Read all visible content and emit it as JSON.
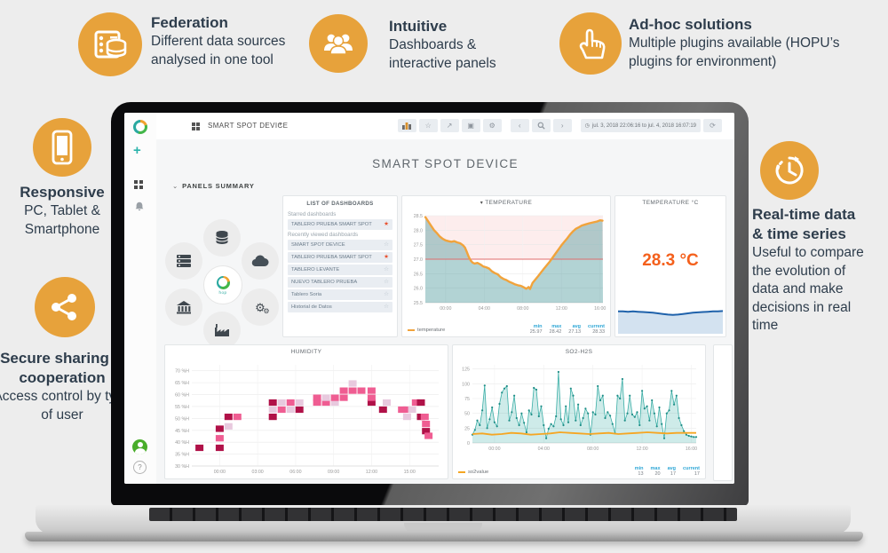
{
  "page": {
    "background": "#ededed"
  },
  "brand": {
    "gold": "#e7a23b",
    "text_dark": "#2e3d4c",
    "teal": "#2aa9a0",
    "orange_stat": "#f4601c"
  },
  "callouts": {
    "federation": {
      "title": "Federation",
      "desc": "Different data sources analysed in one tool"
    },
    "intuitive": {
      "title": "Intuitive",
      "desc": "Dashboards & interactive panels"
    },
    "adhoc": {
      "title": "Ad-hoc solutions",
      "desc": "Multiple plugins available (HOPU’s plugins for environment)"
    },
    "responsive": {
      "title": "Responsive",
      "desc": "PC, Tablet & Smartphone"
    },
    "secure": {
      "title": "Secure sharing & cooperation",
      "desc": "Access control by type of user"
    },
    "realtime": {
      "title": "Real-time data & time series",
      "desc": "Useful to compare the evolution of data and make decisions in real time"
    }
  },
  "dashboard": {
    "nav": {
      "title": "SMART SPOT DEVICE",
      "caret": "▾",
      "toolbar": [
        {
          "name": "add-panel"
        },
        {
          "name": "star",
          "glyph": "☆"
        },
        {
          "name": "share",
          "glyph": "↗"
        },
        {
          "name": "save",
          "glyph": "▣"
        },
        {
          "name": "settings",
          "glyph": "⚙"
        }
      ],
      "nav_group": [
        {
          "name": "back",
          "glyph": "‹"
        },
        {
          "name": "search"
        },
        {
          "name": "forward",
          "glyph": "›"
        }
      ],
      "clock_glyph": "◷",
      "time_range": "jul. 3, 2018 22:06:16 to jul. 4, 2018 16:07:19",
      "refresh_glyph": "⟳"
    },
    "page_title": "SMART SPOT DEVICE",
    "panels_summary": {
      "label": "PANELS SUMMARY",
      "caret": "⌄",
      "center_label": "hop",
      "petals": [
        "database",
        "servers",
        "cloud",
        "bank",
        "gears",
        "factory"
      ]
    },
    "dashlist": {
      "title": "LIST OF DASHBOARDS",
      "sections": [
        {
          "label": "Starred dashboards",
          "rows": [
            {
              "label": "TABLERO PRUEBA SMART SPOT",
              "starred": true
            }
          ]
        },
        {
          "label": "Recently viewed dashboards",
          "rows": [
            {
              "label": "SMART SPOT DEVICE",
              "starred": false
            },
            {
              "label": "TABLERO PRUEBA SMART SPOT",
              "starred": true
            },
            {
              "label": "TABLERO LEVANTE",
              "starred": false
            },
            {
              "label": "NUEVO TABLERO PRUEBA",
              "starred": false
            },
            {
              "label": "Tablero Soria",
              "starred": false
            },
            {
              "label": "Historial de Datos",
              "starred": false
            }
          ]
        }
      ]
    }
  },
  "chart_data": [
    {
      "id": "temperature",
      "type": "line",
      "title": "TEMPERATURE",
      "legend": "temperature",
      "series_color": "#f1a33c",
      "fill_color": "rgba(72,150,152,0.42)",
      "threshold": {
        "value": 27.0,
        "color": "#e06c6c",
        "fill_above": "rgba(242,140,140,0.16)"
      },
      "ylim": [
        25.5,
        28.5
      ],
      "yticks": [
        25.5,
        26.0,
        26.5,
        27.0,
        27.5,
        28.0,
        28.5
      ],
      "xlim": [
        -2.1,
        16.3
      ],
      "xticks": [
        {
          "v": 0,
          "label": "00:00"
        },
        {
          "v": 4,
          "label": "04:00"
        },
        {
          "v": 8,
          "label": "08:00"
        },
        {
          "v": 12,
          "label": "12:00"
        },
        {
          "v": 16,
          "label": "16:00"
        }
      ],
      "stat_labels": [
        "min",
        "max",
        "avg",
        "current"
      ],
      "stats": {
        "min": "25.97",
        "max": "28.42",
        "avg": "27.13",
        "current": "28.33"
      },
      "points": [
        [
          -2.1,
          28.45
        ],
        [
          -1.8,
          28.3
        ],
        [
          -1.5,
          28.15
        ],
        [
          -1.2,
          28.0
        ],
        [
          -0.9,
          27.9
        ],
        [
          -0.6,
          27.78
        ],
        [
          -0.3,
          27.7
        ],
        [
          0,
          27.65
        ],
        [
          0.3,
          27.62
        ],
        [
          0.6,
          27.6
        ],
        [
          0.9,
          27.62
        ],
        [
          1.2,
          27.58
        ],
        [
          1.5,
          27.55
        ],
        [
          1.8,
          27.48
        ],
        [
          2.0,
          27.4
        ],
        [
          2.2,
          27.25
        ],
        [
          2.4,
          27.08
        ],
        [
          2.6,
          26.95
        ],
        [
          2.8,
          26.88
        ],
        [
          3.0,
          26.85
        ],
        [
          3.3,
          26.87
        ],
        [
          3.6,
          26.82
        ],
        [
          3.9,
          26.75
        ],
        [
          4.2,
          26.72
        ],
        [
          4.5,
          26.68
        ],
        [
          4.8,
          26.58
        ],
        [
          5.1,
          26.52
        ],
        [
          5.4,
          26.48
        ],
        [
          5.7,
          26.38
        ],
        [
          6.0,
          26.32
        ],
        [
          6.3,
          26.28
        ],
        [
          6.6,
          26.22
        ],
        [
          6.9,
          26.18
        ],
        [
          7.2,
          26.13
        ],
        [
          7.5,
          26.1
        ],
        [
          7.8,
          26.08
        ],
        [
          8.1,
          26.03
        ],
        [
          8.35,
          25.98
        ],
        [
          8.6,
          26.04
        ],
        [
          8.75,
          25.97
        ],
        [
          9.0,
          26.18
        ],
        [
          9.3,
          26.3
        ],
        [
          9.6,
          26.42
        ],
        [
          9.9,
          26.55
        ],
        [
          10.2,
          26.68
        ],
        [
          10.5,
          26.8
        ],
        [
          10.8,
          26.92
        ],
        [
          11.1,
          27.06
        ],
        [
          11.4,
          27.2
        ],
        [
          11.7,
          27.34
        ],
        [
          12.0,
          27.48
        ],
        [
          12.3,
          27.6
        ],
        [
          12.6,
          27.72
        ],
        [
          12.9,
          27.85
        ],
        [
          13.2,
          27.96
        ],
        [
          13.5,
          28.05
        ],
        [
          13.8,
          28.1
        ],
        [
          14.1,
          28.16
        ],
        [
          14.5,
          28.2
        ],
        [
          14.9,
          28.24
        ],
        [
          15.3,
          28.27
        ],
        [
          15.7,
          28.3
        ],
        [
          16.0,
          28.34
        ],
        [
          16.25,
          28.33
        ]
      ]
    },
    {
      "id": "temp_current",
      "type": "stat",
      "title": "TEMPERATURE °C",
      "value": "28.3 °C",
      "value_color": "#f4601c",
      "spark_color": "#1f62ab",
      "spark_fill": "#d3e2f0",
      "spark": [
        0.3,
        0.3,
        0.31,
        0.3,
        0.31,
        0.32,
        0.33,
        0.34,
        0.36,
        0.38,
        0.4,
        0.41,
        0.4,
        0.38,
        0.36,
        0.34,
        0.33,
        0.32,
        0.31,
        0.3,
        0.3,
        0.29
      ]
    },
    {
      "id": "humidity",
      "type": "heatmap",
      "title": "HUMIDITY",
      "ylim": [
        30,
        72.5
      ],
      "yticks": [
        {
          "v": 30,
          "label": "30 %H"
        },
        {
          "v": 35,
          "label": "35 %H"
        },
        {
          "v": 40,
          "label": "40 %H"
        },
        {
          "v": 45,
          "label": "45 %H"
        },
        {
          "v": 50,
          "label": "50 %H"
        },
        {
          "v": 55,
          "label": "55 %H"
        },
        {
          "v": 60,
          "label": "60 %H"
        },
        {
          "v": 65,
          "label": "65 %H"
        },
        {
          "v": 70,
          "label": "70 %H"
        }
      ],
      "xlim": [
        -2.2,
        17.3
      ],
      "xticks": [
        {
          "v": 0,
          "label": "00:00"
        },
        {
          "v": 3,
          "label": "03:00"
        },
        {
          "v": 6,
          "label": "06:00"
        },
        {
          "v": 9,
          "label": "09:00"
        },
        {
          "v": 12,
          "label": "12:00"
        },
        {
          "v": 15,
          "label": "15:00"
        }
      ],
      "cell_colors": {
        "0": "#e8c9de",
        "1": "#ef5d92",
        "2": "#b01148"
      },
      "cells": [
        [
          -1.6,
          36,
          2
        ],
        [
          0,
          36,
          2
        ],
        [
          0,
          40,
          1
        ],
        [
          0,
          44,
          2
        ],
        [
          0.7,
          45,
          0
        ],
        [
          0.7,
          49,
          2
        ],
        [
          1.4,
          49,
          1
        ],
        [
          4.2,
          49,
          2
        ],
        [
          4.2,
          52,
          0
        ],
        [
          4.2,
          55,
          2
        ],
        [
          4.9,
          52,
          1
        ],
        [
          4.9,
          55,
          0
        ],
        [
          5.6,
          52,
          0
        ],
        [
          5.6,
          55,
          1
        ],
        [
          6.3,
          52,
          2
        ],
        [
          6.3,
          55,
          0
        ],
        [
          7.7,
          55,
          1
        ],
        [
          7.7,
          57,
          1
        ],
        [
          8.4,
          55,
          1
        ],
        [
          8.4,
          57,
          0
        ],
        [
          9.1,
          55,
          0
        ],
        [
          9.1,
          57,
          1
        ],
        [
          9.8,
          57,
          1
        ],
        [
          9.8,
          60,
          1
        ],
        [
          10.5,
          60,
          1
        ],
        [
          10.5,
          63,
          0
        ],
        [
          11.2,
          60,
          1
        ],
        [
          12,
          55,
          2
        ],
        [
          12,
          57,
          1
        ],
        [
          12,
          60,
          1
        ],
        [
          12.9,
          52,
          2
        ],
        [
          13.2,
          55,
          0
        ],
        [
          14.4,
          52,
          1
        ],
        [
          14.8,
          52,
          1
        ],
        [
          14.8,
          49,
          0
        ],
        [
          15.2,
          52,
          0
        ],
        [
          15.5,
          55,
          1
        ],
        [
          15.9,
          55,
          2
        ],
        [
          15.9,
          49,
          2
        ],
        [
          16.2,
          49,
          1
        ],
        [
          16.3,
          46,
          1
        ],
        [
          16.3,
          43,
          2
        ],
        [
          16.5,
          41,
          1
        ]
      ]
    },
    {
      "id": "so2",
      "type": "spike",
      "title": "SO2-H2S",
      "legend": "so2value",
      "spike_color": "#3aaea6",
      "marker_color": "#1f8e87",
      "fill_color": "rgba(58,174,166,0.25)",
      "baseline_color": "#f5a623",
      "ylim": [
        0,
        132
      ],
      "yticks": [
        0,
        25,
        50,
        75,
        100,
        125
      ],
      "xlim": [
        -1.8,
        16.4
      ],
      "xticks": [
        {
          "v": 0,
          "label": "00:00"
        },
        {
          "v": 4,
          "label": "04:00"
        },
        {
          "v": 8,
          "label": "08:00"
        },
        {
          "v": 12,
          "label": "12:00"
        },
        {
          "v": 16,
          "label": "16:00"
        }
      ],
      "stat_labels": [
        "min",
        "max",
        "avg",
        "current"
      ],
      "stats": {
        "min": "13",
        "max": "20",
        "avg": "17",
        "current": "17"
      },
      "values": [
        14,
        22,
        38,
        30,
        55,
        97,
        25,
        40,
        60,
        35,
        28,
        66,
        85,
        92,
        96,
        38,
        52,
        80,
        42,
        30,
        50,
        34,
        18,
        55,
        48,
        93,
        90,
        45,
        62,
        30,
        8,
        24,
        32,
        28,
        45,
        120,
        40,
        30,
        62,
        35,
        92,
        80,
        38,
        65,
        30,
        42,
        58,
        50,
        14,
        52,
        48,
        96,
        72,
        80,
        42,
        52,
        46,
        32,
        16,
        80,
        75,
        108,
        38,
        50,
        80,
        48,
        44,
        52,
        30,
        88,
        58,
        62,
        38,
        72,
        50,
        28,
        60,
        32,
        8,
        50,
        55,
        88,
        65,
        80,
        42,
        30,
        20,
        14,
        12,
        11,
        10,
        10
      ],
      "baseline_values": [
        15,
        16,
        14,
        15,
        17,
        16,
        14,
        15,
        16,
        18,
        17,
        16,
        15,
        16,
        17,
        15,
        16,
        17,
        18,
        17,
        16,
        17,
        17,
        17
      ]
    }
  ]
}
